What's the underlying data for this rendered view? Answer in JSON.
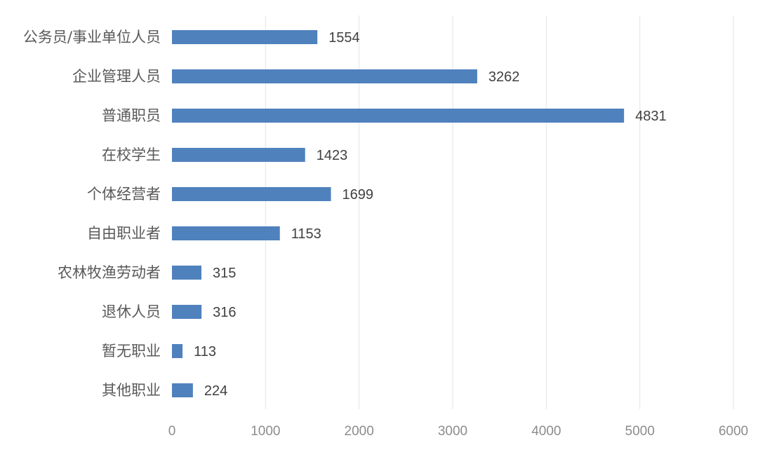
{
  "chart_data": {
    "type": "bar",
    "orientation": "horizontal",
    "categories": [
      "公务员/事业单位人员",
      "企业管理人员",
      "普通职员",
      "在校学生",
      "个体经营者",
      "自由职业者",
      "农林牧渔劳动者",
      "退休人员",
      "暂无职业",
      "其他职业"
    ],
    "values": [
      1554,
      3262,
      4831,
      1423,
      1699,
      1153,
      315,
      316,
      113,
      224
    ],
    "xlim": [
      0,
      6000
    ],
    "x_ticks": [
      0,
      1000,
      2000,
      3000,
      4000,
      5000,
      6000
    ],
    "grid": "vertical",
    "legend": "none",
    "bar_color": "#4f81bd"
  }
}
